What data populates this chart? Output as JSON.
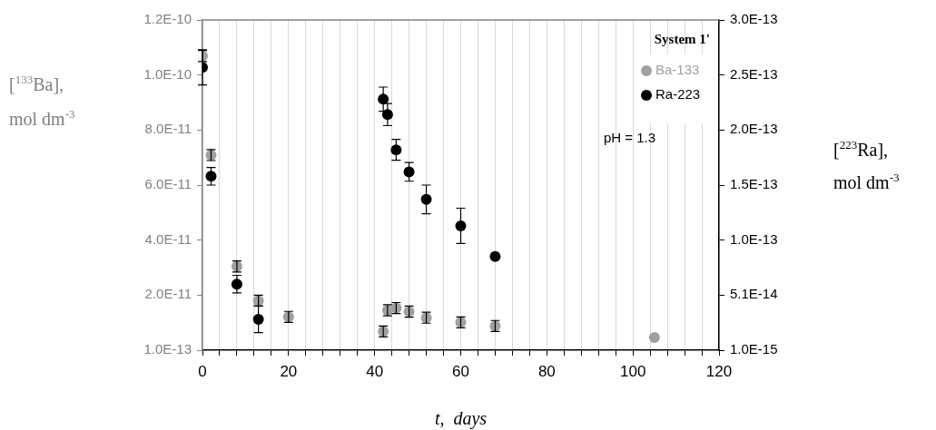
{
  "chart_data": {
    "type": "scatter",
    "xlabel": "t,  days",
    "ylabel": "[$^{133}$Ba], mol dm$^{-3}$",
    "y2label": "[$^{223}$Ra], mol dm$^{-3}$",
    "legend_title": "System 1'",
    "annotations": [
      "pH = 1.3"
    ],
    "xlim": [
      0,
      120
    ],
    "xticks": [
      0,
      {
        "value": 4,
        "label": null
      },
      {
        "value": 8,
        "label": null
      },
      {
        "value": 12,
        "label": null
      },
      {
        "value": 16,
        "label": null
      },
      20,
      {
        "value": 24,
        "label": null
      },
      {
        "value": 28,
        "label": null
      },
      {
        "value": 32,
        "label": null
      },
      {
        "value": 36,
        "label": null
      },
      40,
      {
        "value": 44,
        "label": null
      },
      {
        "value": 48,
        "label": null
      },
      {
        "value": 52,
        "label": null
      },
      {
        "value": 56,
        "label": null
      },
      60,
      {
        "value": 64,
        "label": null
      },
      {
        "value": 68,
        "label": null
      },
      {
        "value": 72,
        "label": null
      },
      {
        "value": 76,
        "label": null
      },
      80,
      {
        "value": 84,
        "label": null
      },
      {
        "value": 88,
        "label": null
      },
      {
        "value": 92,
        "label": null
      },
      {
        "value": 96,
        "label": null
      },
      100,
      {
        "value": 104,
        "label": null
      },
      {
        "value": 108,
        "label": null
      },
      {
        "value": 112,
        "label": null
      },
      {
        "value": 116,
        "label": null
      },
      120
    ],
    "ylim": [
      1e-13,
      1.201e-10
    ],
    "yticks": [
      {
        "value": 1e-13,
        "label": "1.0E-13"
      },
      {
        "value": 2.01e-11,
        "label": "2.0E-11"
      },
      {
        "value": 4.01e-11,
        "label": "4.0E-11"
      },
      {
        "value": 6.01e-11,
        "label": "6.0E-11"
      },
      {
        "value": 8.01e-11,
        "label": "8.0E-11"
      },
      {
        "value": 1.001e-10,
        "label": "1.0E-10"
      },
      {
        "value": 1.201e-10,
        "label": "1.2E-10"
      }
    ],
    "y2lim": [
      1e-15,
      3.01e-13
    ],
    "y2ticks": [
      {
        "value": 1e-15,
        "label": "1.0E-15"
      },
      {
        "value": 5.1e-14,
        "label": "5.1E-14"
      },
      {
        "value": 1.01e-13,
        "label": "1.0E-13"
      },
      {
        "value": 1.51e-13,
        "label": "1.5E-13"
      },
      {
        "value": 2.01e-13,
        "label": "2.0E-13"
      },
      {
        "value": 2.51e-13,
        "label": "2.5E-13"
      },
      {
        "value": 3.01e-13,
        "label": "3.0E-13"
      }
    ],
    "grid": "x",
    "legend": "top right",
    "marker": "circle",
    "series": [
      {
        "name": "Ba-133",
        "color": "#a0a0a0",
        "x": [
          0,
          2,
          8,
          13,
          20,
          42,
          43,
          45,
          48,
          52,
          60,
          68,
          105
        ],
        "values": [
          1.07e-10,
          7.1e-11,
          3.05e-11,
          1.81e-11,
          1.22e-11,
          6.9e-12,
          1.46e-11,
          1.54e-11,
          1.41e-11,
          1.19e-11,
          1.02e-11,
          8.9e-12,
          4.7e-12
        ],
        "errors": [
          2e-12,
          2e-12,
          2e-12,
          2e-12,
          2e-12,
          2e-12,
          2e-12,
          2e-12,
          2e-12,
          2e-12,
          2e-12,
          2e-12,
          null
        ]
      },
      {
        "name": "Ra-223",
        "color": "#000000",
        "axis": "y2",
        "x": [
          0,
          2,
          8,
          13,
          42,
          43,
          45,
          48,
          52,
          60,
          68
        ],
        "values": [
          2.58e-13,
          1.59e-13,
          6.1e-14,
          2.9e-14,
          2.29e-13,
          2.15e-13,
          1.83e-13,
          1.63e-13,
          1.38e-13,
          1.14e-13,
          8.6e-14
        ],
        "errors": [
          1.6e-14,
          8e-15,
          8e-15,
          1.2e-14,
          1.1e-14,
          1e-14,
          9.5e-15,
          8.5e-15,
          1.3e-14,
          1.6e-14,
          null
        ]
      }
    ]
  }
}
